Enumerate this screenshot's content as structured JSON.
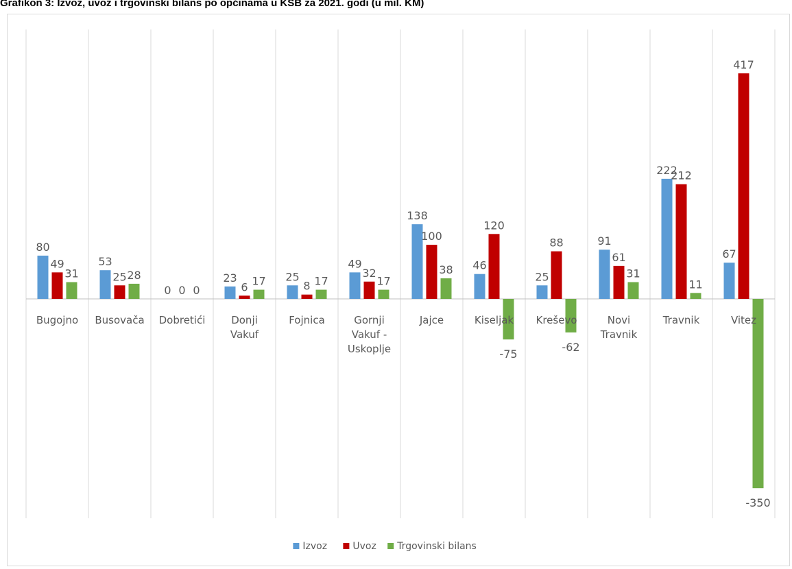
{
  "title": "Grafikon 3: Izvoz, uvoz i trgovinski bilans po općinama u KSB za 2021. godi (u mil. KM)",
  "colors": {
    "Izvoz": "#5b9bd5",
    "Uvoz": "#c00000",
    "Trgovinski bilans": "#70ad47"
  },
  "chart_data": {
    "type": "bar",
    "categories": [
      [
        "Bugojno"
      ],
      [
        "Busovača"
      ],
      [
        "Dobretići"
      ],
      [
        "Donji",
        "Vakuf"
      ],
      [
        "Fojnica"
      ],
      [
        "Gornji",
        "Vakuf -",
        "Uskoplje"
      ],
      [
        "Jajce"
      ],
      [
        "Kiseljak"
      ],
      [
        "Kreševo"
      ],
      [
        "Novi",
        "Travnik"
      ],
      [
        "Travnik"
      ],
      [
        "Vitez"
      ]
    ],
    "series": [
      {
        "name": "Izvoz",
        "values": [
          80,
          53,
          0,
          23,
          25,
          49,
          138,
          46,
          25,
          91,
          222,
          67
        ]
      },
      {
        "name": "Uvoz",
        "values": [
          49,
          25,
          0,
          6,
          8,
          32,
          100,
          120,
          88,
          61,
          212,
          417
        ]
      },
      {
        "name": "Trgovinski bilans",
        "values": [
          31,
          28,
          0,
          17,
          17,
          17,
          38,
          -75,
          -62,
          31,
          11,
          -350
        ]
      }
    ],
    "ylim": [
      -400,
      450
    ],
    "grid": "vertical category separators",
    "legend": "bottom-center"
  }
}
